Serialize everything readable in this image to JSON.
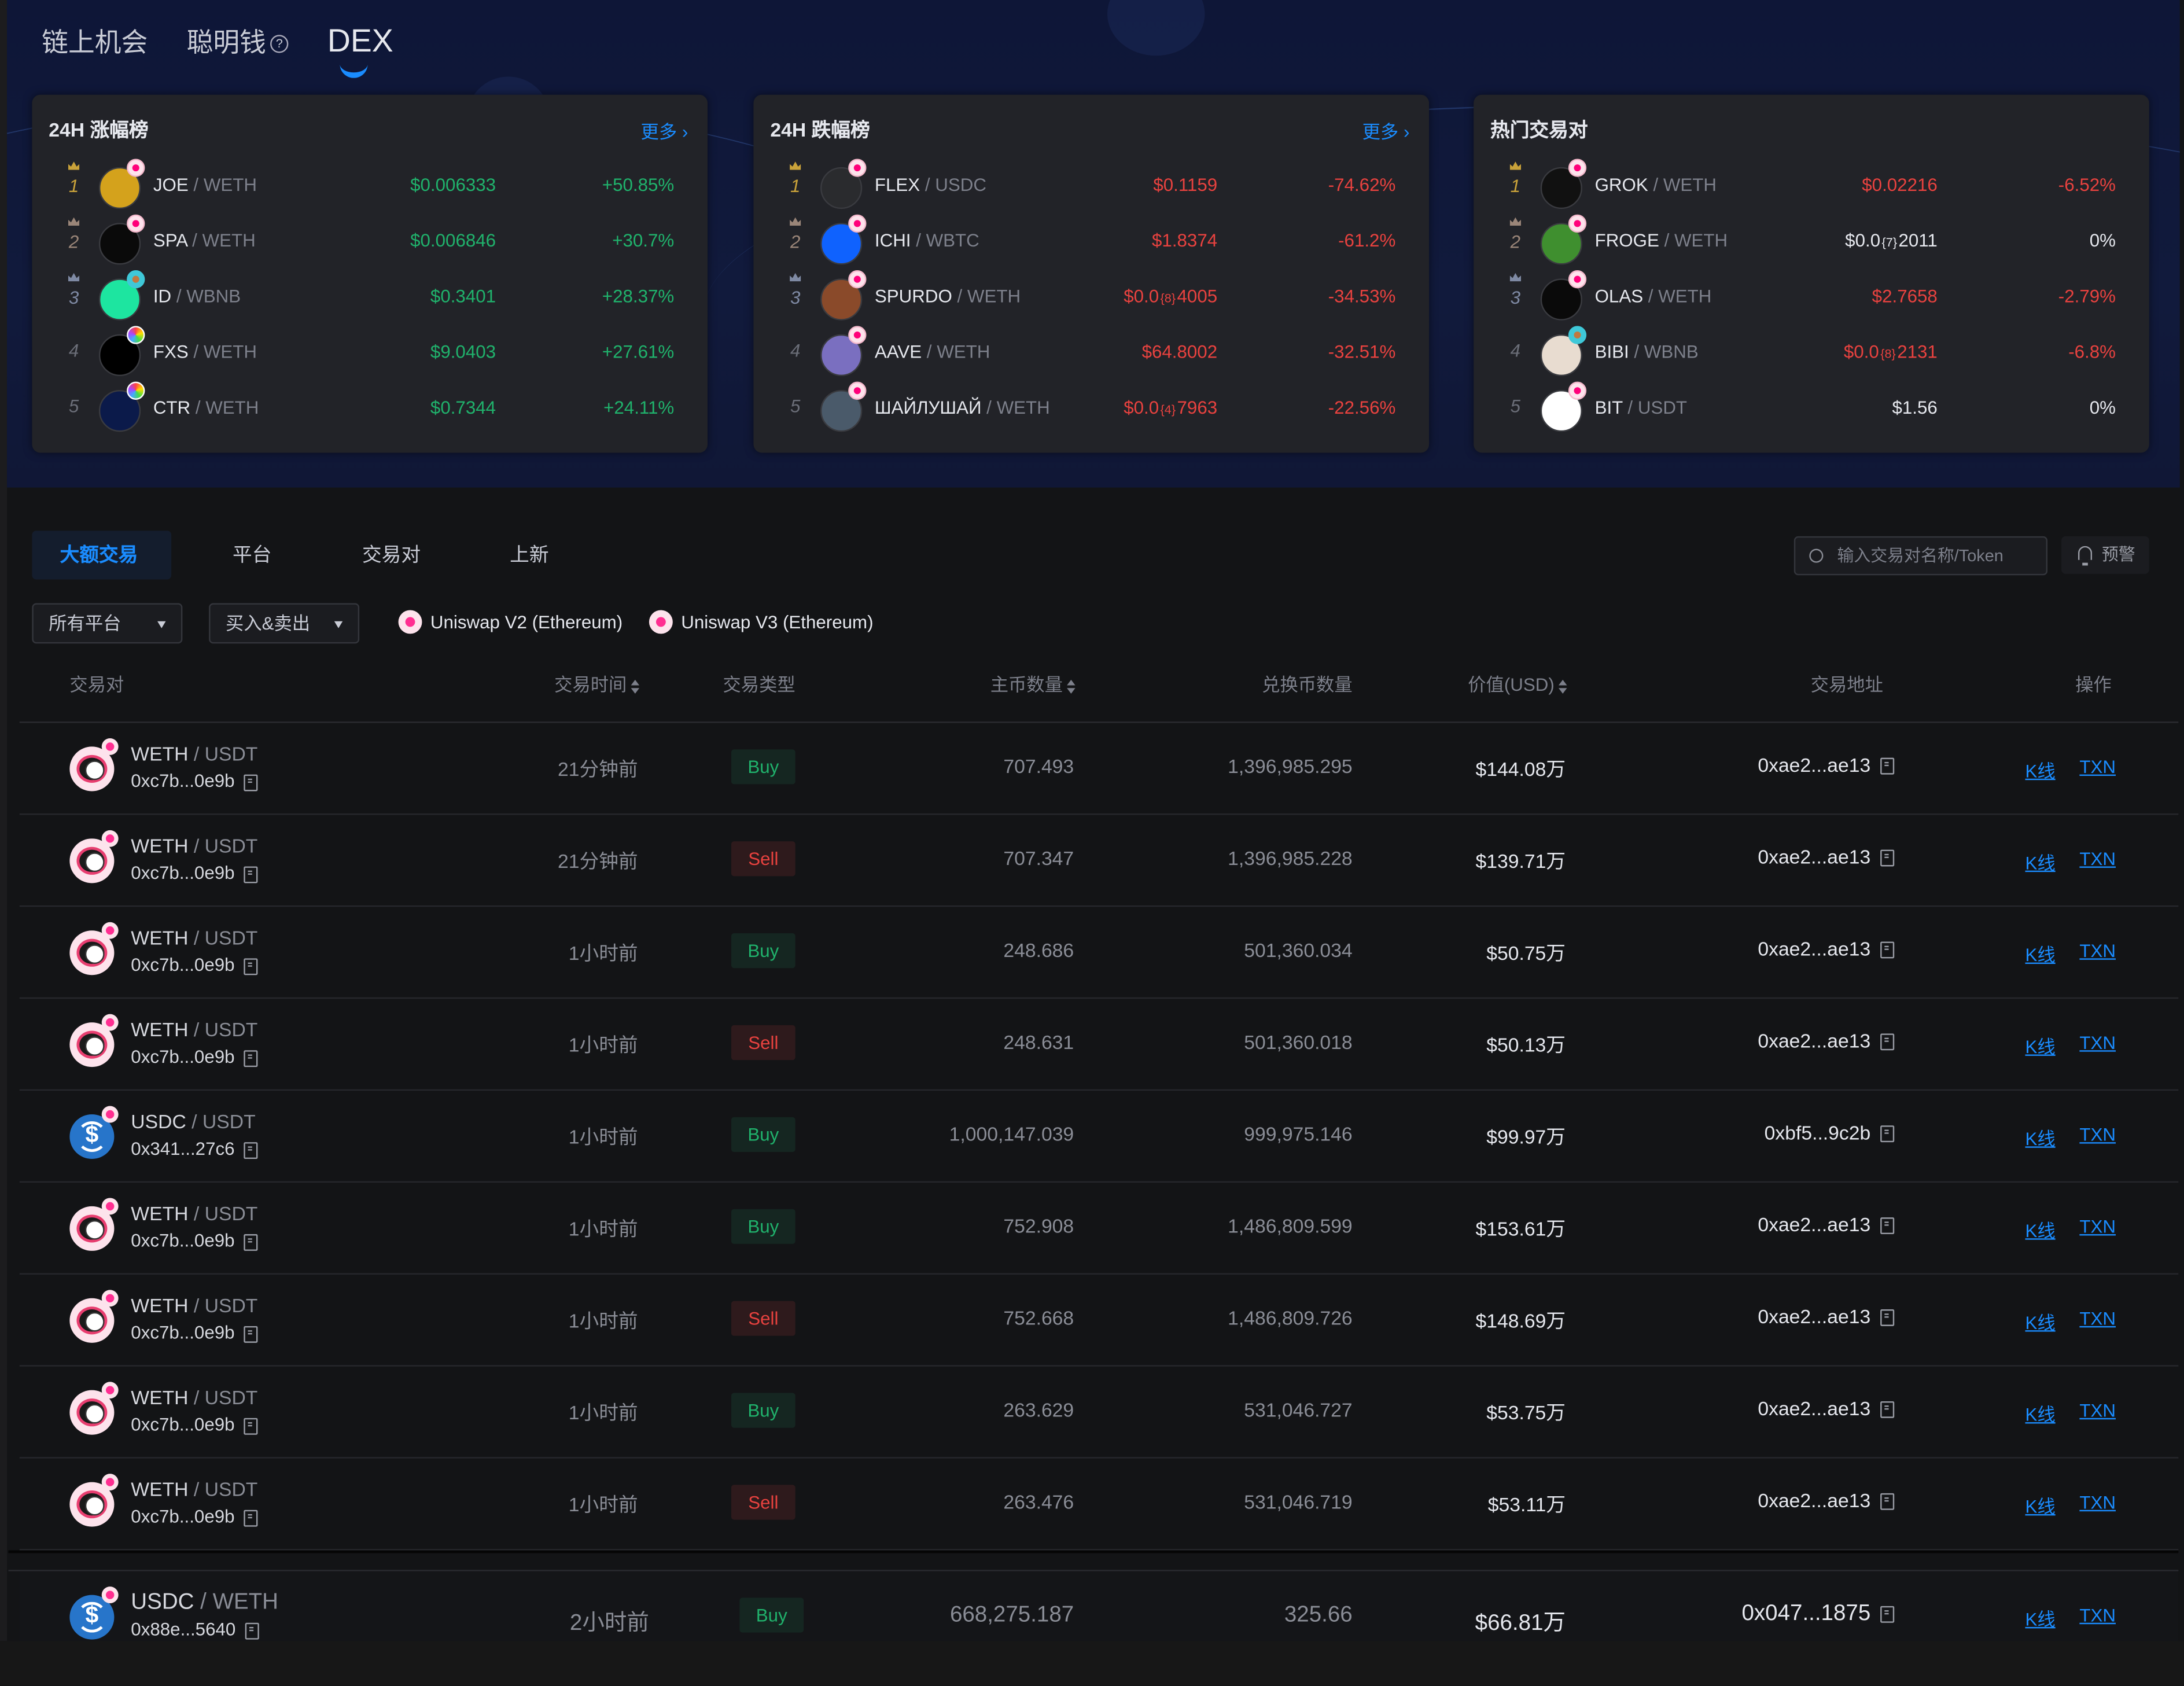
{
  "nav": {
    "items": [
      {
        "label": "链上机会"
      },
      {
        "label": "聪明钱",
        "help_icon": "question-circle-icon"
      },
      {
        "label": "DEX",
        "active": true
      }
    ]
  },
  "colors": {
    "accent": "#1a8cff",
    "up": "#20b26c",
    "down": "#e8423f",
    "card_bg": "#222328",
    "page_bg": "#131416"
  },
  "cards": [
    {
      "title": "24H 涨幅榜",
      "more": "更多",
      "rows": [
        {
          "rank": "1",
          "base": "JOE",
          "quote": "WETH",
          "price": "$0.006333",
          "change": "+50.85%",
          "trend": "up",
          "icon_color": "#d4a21c",
          "badge": "uniswap"
        },
        {
          "rank": "2",
          "base": "SPA",
          "quote": "WETH",
          "price": "$0.006846",
          "change": "+30.7%",
          "trend": "up",
          "icon_color": "#0a0a0a",
          "badge": "uniswap"
        },
        {
          "rank": "3",
          "base": "ID",
          "quote": "WBNB",
          "price": "$0.3401",
          "change": "+28.37%",
          "trend": "up",
          "icon_color": "#1de5a0",
          "badge": "pancake"
        },
        {
          "rank": "4",
          "base": "FXS",
          "quote": "WETH",
          "price": "$9.0403",
          "change": "+27.61%",
          "trend": "up",
          "icon_color": "#000000",
          "badge": "rainbow"
        },
        {
          "rank": "5",
          "base": "CTR",
          "quote": "WETH",
          "price": "$0.7344",
          "change": "+24.11%",
          "trend": "up",
          "icon_color": "#0b1a4a",
          "badge": "rainbow"
        }
      ]
    },
    {
      "title": "24H 跌幅榜",
      "more": "更多",
      "rows": [
        {
          "rank": "1",
          "base": "FLEX",
          "quote": "USDC",
          "price": "$0.1159",
          "change": "-74.62%",
          "trend": "down",
          "icon_color": "#2a2b2e",
          "badge": "uniswap"
        },
        {
          "rank": "2",
          "base": "ICHI",
          "quote": "WBTC",
          "price": "$1.8374",
          "change": "-61.2%",
          "trend": "down",
          "icon_color": "#0f62fe",
          "badge": "uniswap"
        },
        {
          "rank": "3",
          "base": "SPURDO",
          "quote": "WETH",
          "price_prefix": "$0.0",
          "price_zeros": "{8}",
          "price_suffix": "4005",
          "change": "-34.53%",
          "trend": "down",
          "icon_color": "#8a4a2a",
          "badge": "uniswap"
        },
        {
          "rank": "4",
          "base": "AAVE",
          "quote": "WETH",
          "price": "$64.8002",
          "change": "-32.51%",
          "trend": "down",
          "icon_color": "#7a6fc0",
          "badge": "uniswap"
        },
        {
          "rank": "5",
          "base": "ШАЙЛУШАЙ",
          "quote": "WETH",
          "price_prefix": "$0.0",
          "price_zeros": "{4}",
          "price_suffix": "7963",
          "change": "-22.56%",
          "trend": "down",
          "icon_color": "#4a5a6a",
          "badge": "uniswap"
        }
      ]
    },
    {
      "title": "热门交易对",
      "rows": [
        {
          "rank": "1",
          "base": "GROK",
          "quote": "WETH",
          "price": "$0.02216",
          "change": "-6.52%",
          "trend": "down",
          "icon_color": "#111111",
          "badge": "uniswap"
        },
        {
          "rank": "2",
          "base": "FROGE",
          "quote": "WETH",
          "price_prefix": "$0.0",
          "price_zeros": "{7}",
          "price_suffix": "2011",
          "change": "0%",
          "trend": "flat",
          "icon_color": "#3f8f2f",
          "badge": "uniswap"
        },
        {
          "rank": "3",
          "base": "OLAS",
          "quote": "WETH",
          "price": "$2.7658",
          "change": "-2.79%",
          "trend": "down",
          "icon_color": "#0a0a0a",
          "badge": "uniswap"
        },
        {
          "rank": "4",
          "base": "BIBI",
          "quote": "WBNB",
          "price_prefix": "$0.0",
          "price_zeros": "{8}",
          "price_suffix": "2131",
          "change": "-6.8%",
          "trend": "down",
          "icon_color": "#e8dcd0",
          "badge": "pancake"
        },
        {
          "rank": "5",
          "base": "BIT",
          "quote": "USDT",
          "price": "$1.56",
          "change": "0%",
          "trend": "flat",
          "icon_color": "#ffffff",
          "badge": "uniswap"
        }
      ]
    }
  ],
  "tabs": [
    {
      "label": "大额交易",
      "active": true
    },
    {
      "label": "平台"
    },
    {
      "label": "交易对"
    },
    {
      "label": "上新"
    }
  ],
  "search": {
    "placeholder": "输入交易对名称/Token",
    "value": ""
  },
  "alert_label": "预警",
  "filters": {
    "platform": "所有平台",
    "side": "买入&卖出",
    "chips": [
      "Uniswap V2 (Ethereum)",
      "Uniswap V3 (Ethereum)"
    ]
  },
  "table": {
    "headers": {
      "pair": "交易对",
      "time": "交易时间",
      "type": "交易类型",
      "amount": "主币数量",
      "swap": "兑换币数量",
      "value": "价值(USD)",
      "address": "交易地址",
      "action": "操作"
    },
    "action_kline": "K线",
    "action_txn": "TXN",
    "rows": [
      {
        "base": "WETH",
        "quote": "USDT",
        "pool": "0xc7b...0e9b",
        "time": "21分钟前",
        "type": "Buy",
        "amount": "707.493",
        "swap": "1,396,985.295",
        "value": "$144.08万",
        "address": "0xae2...ae13",
        "icon": "weth"
      },
      {
        "base": "WETH",
        "quote": "USDT",
        "pool": "0xc7b...0e9b",
        "time": "21分钟前",
        "type": "Sell",
        "amount": "707.347",
        "swap": "1,396,985.228",
        "value": "$139.71万",
        "address": "0xae2...ae13",
        "icon": "weth"
      },
      {
        "base": "WETH",
        "quote": "USDT",
        "pool": "0xc7b...0e9b",
        "time": "1小时前",
        "type": "Buy",
        "amount": "248.686",
        "swap": "501,360.034",
        "value": "$50.75万",
        "address": "0xae2...ae13",
        "icon": "weth"
      },
      {
        "base": "WETH",
        "quote": "USDT",
        "pool": "0xc7b...0e9b",
        "time": "1小时前",
        "type": "Sell",
        "amount": "248.631",
        "swap": "501,360.018",
        "value": "$50.13万",
        "address": "0xae2...ae13",
        "icon": "weth"
      },
      {
        "base": "USDC",
        "quote": "USDT",
        "pool": "0x341...27c6",
        "time": "1小时前",
        "type": "Buy",
        "amount": "1,000,147.039",
        "swap": "999,975.146",
        "value": "$99.97万",
        "address": "0xbf5...9c2b",
        "icon": "usdc"
      },
      {
        "base": "WETH",
        "quote": "USDT",
        "pool": "0xc7b...0e9b",
        "time": "1小时前",
        "type": "Buy",
        "amount": "752.908",
        "swap": "1,486,809.599",
        "value": "$153.61万",
        "address": "0xae2...ae13",
        "icon": "weth"
      },
      {
        "base": "WETH",
        "quote": "USDT",
        "pool": "0xc7b...0e9b",
        "time": "1小时前",
        "type": "Sell",
        "amount": "752.668",
        "swap": "1,486,809.726",
        "value": "$148.69万",
        "address": "0xae2...ae13",
        "icon": "weth"
      },
      {
        "base": "WETH",
        "quote": "USDT",
        "pool": "0xc7b...0e9b",
        "time": "1小时前",
        "type": "Buy",
        "amount": "263.629",
        "swap": "531,046.727",
        "value": "$53.75万",
        "address": "0xae2...ae13",
        "icon": "weth"
      },
      {
        "base": "WETH",
        "quote": "USDT",
        "pool": "0xc7b...0e9b",
        "time": "1小时前",
        "type": "Sell",
        "amount": "263.476",
        "swap": "531,046.719",
        "value": "$53.11万",
        "address": "0xae2...ae13",
        "icon": "weth"
      },
      {
        "base": "USDC",
        "quote": "WETH",
        "pool": "0x88e...5640",
        "time": "2小时前",
        "type": "Buy",
        "amount": "668,275.187",
        "swap": "325.66",
        "value": "$66.81万",
        "address": "0x047...1875",
        "icon": "usdc"
      }
    ]
  }
}
